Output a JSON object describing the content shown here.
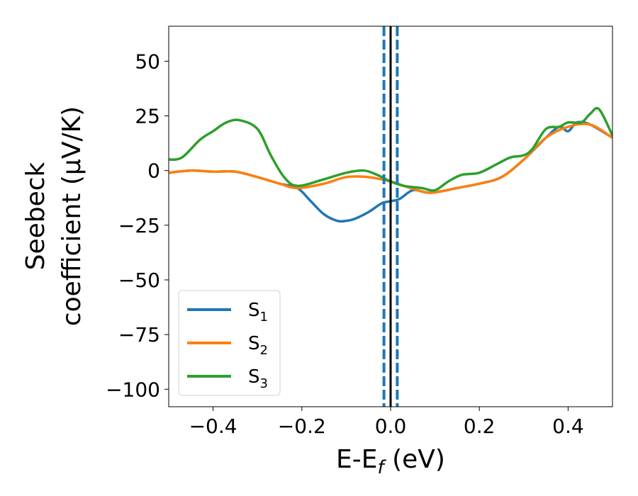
{
  "chart_data": {
    "type": "line",
    "title": "",
    "xlabel": "E-E",
    "xlabel_sub": "f",
    "xlabel_unit": " (eV)",
    "ylabel_line1": "Seebeck",
    "ylabel_line2": "coefficient  (μV/K)",
    "xlim": [
      -0.5,
      0.5
    ],
    "ylim": [
      -108,
      66
    ],
    "xticks": [
      -0.4,
      -0.2,
      0.0,
      0.2,
      0.4
    ],
    "xtick_labels": [
      "−0.4",
      "−0.2",
      "0.0",
      "0.2",
      "0.4"
    ],
    "yticks": [
      50,
      25,
      0,
      -25,
      -50,
      -75,
      -100
    ],
    "ytick_labels": [
      "50",
      "25",
      "0",
      "−25",
      "−50",
      "−75",
      "−100"
    ],
    "grid": false,
    "legend_position": "lower-left",
    "vlines": [
      {
        "x": 0.0,
        "style": "solid",
        "color": "#000000"
      },
      {
        "x": -0.015,
        "style": "dashed",
        "color": "#1f77b4"
      },
      {
        "x": 0.015,
        "style": "dashed",
        "color": "#1f77b4"
      }
    ],
    "series": [
      {
        "name": "S",
        "sub": "1",
        "color": "#1f77b4",
        "x": [
          -0.5,
          -0.45,
          -0.4,
          -0.35,
          -0.3,
          -0.25,
          -0.21,
          -0.18,
          -0.15,
          -0.12,
          -0.1,
          -0.08,
          -0.05,
          -0.02,
          0.0,
          0.02,
          0.05,
          0.08,
          0.1,
          0.15,
          0.2,
          0.25,
          0.3,
          0.35,
          0.38,
          0.4,
          0.42,
          0.45,
          0.5
        ],
        "y": [
          -1,
          0,
          -0.5,
          -0.5,
          -3,
          -6,
          -8,
          -14,
          -20,
          -23,
          -23,
          -22,
          -19,
          -15,
          -14,
          -13,
          -9,
          -10,
          -10,
          -8,
          -6,
          -3,
          5,
          15,
          20,
          18,
          22,
          21,
          15
        ]
      },
      {
        "name": "S",
        "sub": "2",
        "color": "#ff7f0e",
        "x": [
          -0.5,
          -0.45,
          -0.4,
          -0.35,
          -0.3,
          -0.25,
          -0.21,
          -0.15,
          -0.1,
          -0.05,
          0.0,
          0.03,
          0.06,
          0.08,
          0.1,
          0.15,
          0.2,
          0.25,
          0.3,
          0.35,
          0.4,
          0.45,
          0.5
        ],
        "y": [
          -1,
          0,
          -0.5,
          -0.5,
          -3,
          -6,
          -8,
          -6,
          -3,
          -3,
          -5,
          -7,
          -9,
          -10,
          -10,
          -8,
          -6,
          -3,
          5,
          15,
          20,
          21,
          15
        ]
      },
      {
        "name": "S",
        "sub": "3",
        "color": "#2ca02c",
        "x": [
          -0.5,
          -0.47,
          -0.43,
          -0.4,
          -0.37,
          -0.34,
          -0.3,
          -0.27,
          -0.24,
          -0.21,
          -0.15,
          -0.1,
          -0.06,
          -0.03,
          0.0,
          0.03,
          0.07,
          0.1,
          0.13,
          0.16,
          0.2,
          0.24,
          0.27,
          0.3,
          0.32,
          0.35,
          0.38,
          0.4,
          0.43,
          0.45,
          0.47,
          0.5
        ],
        "y": [
          5,
          6,
          14,
          18,
          22,
          23,
          19,
          7,
          -3,
          -7,
          -4,
          -1,
          0,
          -2,
          -5,
          -7,
          -8,
          -9,
          -5,
          -2,
          -1,
          3,
          6,
          7,
          10,
          19,
          20,
          22,
          22,
          26,
          28,
          16
        ]
      }
    ]
  }
}
